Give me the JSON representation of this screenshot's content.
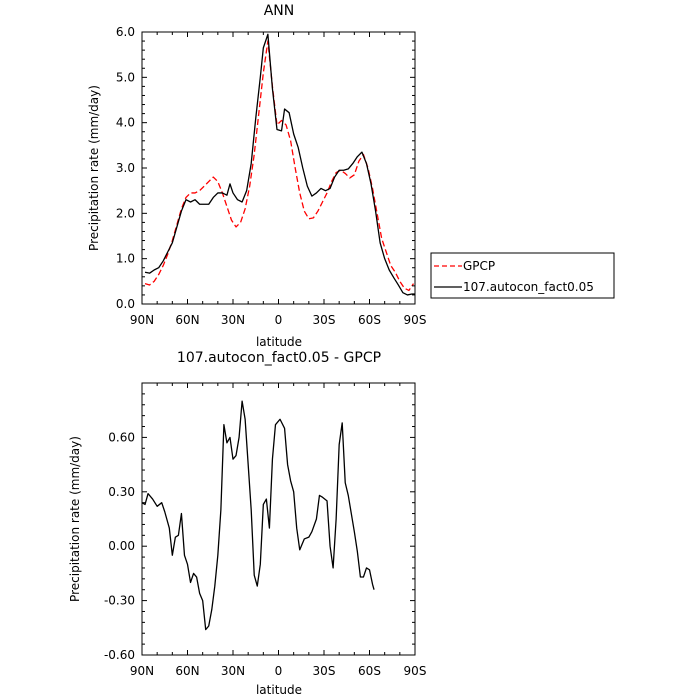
{
  "chart_data": [
    {
      "type": "line",
      "title": "ANN",
      "xlabel": "latitude",
      "ylabel": "Precipitation rate (mm/day)",
      "xlim": [
        90,
        -90
      ],
      "ylim": [
        0,
        6
      ],
      "xticks": [
        90,
        60,
        30,
        0,
        -30,
        -60,
        -90
      ],
      "xtick_labels": [
        "90N",
        "60N",
        "30N",
        "0",
        "30S",
        "60S",
        "90S"
      ],
      "yticks": [
        0,
        1,
        2,
        3,
        4,
        5,
        6
      ],
      "ytick_labels": [
        "0.0",
        "1.0",
        "2.0",
        "3.0",
        "4.0",
        "5.0",
        "6.0"
      ],
      "legend_position": "right",
      "series": [
        {
          "name": "GPCP",
          "color": "#ff0000",
          "dash": "dashed",
          "points": [
            [
              88,
              0.45
            ],
            [
              85,
              0.42
            ],
            [
              82,
              0.5
            ],
            [
              79,
              0.65
            ],
            [
              76,
              0.85
            ],
            [
              73,
              1.1
            ],
            [
              70,
              1.4
            ],
            [
              67,
              1.75
            ],
            [
              64,
              2.1
            ],
            [
              61,
              2.35
            ],
            [
              58,
              2.45
            ],
            [
              55,
              2.45
            ],
            [
              52,
              2.5
            ],
            [
              49,
              2.6
            ],
            [
              46,
              2.7
            ],
            [
              43,
              2.8
            ],
            [
              40,
              2.7
            ],
            [
              37,
              2.45
            ],
            [
              34,
              2.15
            ],
            [
              31,
              1.85
            ],
            [
              28,
              1.7
            ],
            [
              25,
              1.8
            ],
            [
              22,
              2.1
            ],
            [
              19,
              2.6
            ],
            [
              16,
              3.3
            ],
            [
              13,
              4.2
            ],
            [
              10,
              5.1
            ],
            [
              7,
              5.8
            ],
            [
              4,
              4.8
            ],
            [
              1,
              3.95
            ],
            [
              -2,
              4.05
            ],
            [
              -5,
              3.95
            ],
            [
              -8,
              3.6
            ],
            [
              -11,
              3.0
            ],
            [
              -14,
              2.45
            ],
            [
              -17,
              2.05
            ],
            [
              -20,
              1.88
            ],
            [
              -23,
              1.9
            ],
            [
              -26,
              2.05
            ],
            [
              -29,
              2.25
            ],
            [
              -32,
              2.45
            ],
            [
              -35,
              2.7
            ],
            [
              -38,
              2.9
            ],
            [
              -41,
              2.95
            ],
            [
              -44,
              2.88
            ],
            [
              -47,
              2.78
            ],
            [
              -50,
              2.85
            ],
            [
              -53,
              3.15
            ],
            [
              -56,
              3.3
            ],
            [
              -59,
              3.0
            ],
            [
              -62,
              2.55
            ],
            [
              -65,
              2.0
            ],
            [
              -68,
              1.45
            ],
            [
              -71,
              1.15
            ],
            [
              -74,
              0.85
            ],
            [
              -77,
              0.7
            ],
            [
              -80,
              0.5
            ],
            [
              -83,
              0.35
            ],
            [
              -86,
              0.3
            ],
            [
              -89,
              0.45
            ]
          ]
        },
        {
          "name": "107.autocon_fact0.05",
          "color": "#000000",
          "dash": "solid",
          "points": [
            [
              88,
              0.7
            ],
            [
              85,
              0.68
            ],
            [
              82,
              0.75
            ],
            [
              79,
              0.8
            ],
            [
              76,
              0.95
            ],
            [
              73,
              1.15
            ],
            [
              70,
              1.35
            ],
            [
              67,
              1.7
            ],
            [
              64,
              2.05
            ],
            [
              61,
              2.3
            ],
            [
              58,
              2.25
            ],
            [
              55,
              2.3
            ],
            [
              52,
              2.2
            ],
            [
              49,
              2.2
            ],
            [
              46,
              2.2
            ],
            [
              43,
              2.35
            ],
            [
              40,
              2.45
            ],
            [
              37,
              2.45
            ],
            [
              34,
              2.4
            ],
            [
              32,
              2.65
            ],
            [
              30,
              2.45
            ],
            [
              27,
              2.3
            ],
            [
              24,
              2.25
            ],
            [
              21,
              2.5
            ],
            [
              18,
              3.1
            ],
            [
              15,
              4.1
            ],
            [
              12,
              5.0
            ],
            [
              10,
              5.65
            ],
            [
              7,
              5.95
            ],
            [
              4,
              4.75
            ],
            [
              1,
              3.85
            ],
            [
              -2,
              3.82
            ],
            [
              -4,
              4.3
            ],
            [
              -7,
              4.22
            ],
            [
              -10,
              3.75
            ],
            [
              -13,
              3.45
            ],
            [
              -16,
              3.0
            ],
            [
              -19,
              2.6
            ],
            [
              -22,
              2.38
            ],
            [
              -25,
              2.45
            ],
            [
              -28,
              2.55
            ],
            [
              -31,
              2.5
            ],
            [
              -34,
              2.55
            ],
            [
              -37,
              2.8
            ],
            [
              -40,
              2.95
            ],
            [
              -43,
              2.95
            ],
            [
              -46,
              2.98
            ],
            [
              -49,
              3.1
            ],
            [
              -52,
              3.25
            ],
            [
              -55,
              3.35
            ],
            [
              -58,
              3.1
            ],
            [
              -61,
              2.65
            ],
            [
              -64,
              2.05
            ],
            [
              -67,
              1.35
            ],
            [
              -70,
              1.0
            ],
            [
              -73,
              0.75
            ],
            [
              -76,
              0.58
            ],
            [
              -79,
              0.42
            ],
            [
              -82,
              0.25
            ],
            [
              -85,
              0.2
            ],
            [
              -88,
              0.22
            ],
            [
              -90,
              0.22
            ]
          ]
        }
      ]
    },
    {
      "type": "line",
      "title": "107.autocon_fact0.05 - GPCP",
      "xlabel": "latitude",
      "ylabel": "Precipitation rate (mm/day)",
      "xlim": [
        90,
        -90
      ],
      "ylim": [
        -0.6,
        0.9
      ],
      "xticks": [
        90,
        60,
        30,
        0,
        -30,
        -60,
        -90
      ],
      "xtick_labels": [
        "90N",
        "60N",
        "30N",
        "0",
        "30S",
        "60S",
        "90S"
      ],
      "yticks": [
        -0.6,
        -0.3,
        0.0,
        0.3,
        0.6
      ],
      "ytick_labels": [
        "-0.60",
        "-0.30",
        "0.00",
        "0.30",
        "0.60"
      ],
      "series": [
        {
          "color": "#000000",
          "dash": "solid",
          "points": [
            [
              90,
              0.24
            ],
            [
              88,
              0.23
            ],
            [
              86,
              0.29
            ],
            [
              83,
              0.26
            ],
            [
              80,
              0.22
            ],
            [
              77,
              0.24
            ],
            [
              75,
              0.19
            ],
            [
              72,
              0.1
            ],
            [
              70,
              -0.05
            ],
            [
              68,
              0.05
            ],
            [
              66,
              0.06
            ],
            [
              64,
              0.18
            ],
            [
              62,
              -0.05
            ],
            [
              60,
              -0.1
            ],
            [
              58,
              -0.2
            ],
            [
              56,
              -0.15
            ],
            [
              54,
              -0.17
            ],
            [
              52,
              -0.26
            ],
            [
              50,
              -0.3
            ],
            [
              48,
              -0.46
            ],
            [
              46,
              -0.44
            ],
            [
              44,
              -0.35
            ],
            [
              42,
              -0.22
            ],
            [
              40,
              -0.05
            ],
            [
              38,
              0.2
            ],
            [
              36,
              0.67
            ],
            [
              34,
              0.57
            ],
            [
              32,
              0.6
            ],
            [
              30,
              0.48
            ],
            [
              28,
              0.5
            ],
            [
              26,
              0.6
            ],
            [
              24,
              0.8
            ],
            [
              22,
              0.7
            ],
            [
              20,
              0.45
            ],
            [
              18,
              0.2
            ],
            [
              16,
              -0.16
            ],
            [
              14,
              -0.22
            ],
            [
              12,
              -0.1
            ],
            [
              10,
              0.23
            ],
            [
              8,
              0.26
            ],
            [
              6,
              0.1
            ],
            [
              4,
              0.48
            ],
            [
              2,
              0.67
            ],
            [
              -1,
              0.7
            ],
            [
              -4,
              0.65
            ],
            [
              -6,
              0.45
            ],
            [
              -8,
              0.36
            ],
            [
              -10,
              0.3
            ],
            [
              -12,
              0.1
            ],
            [
              -14,
              -0.02
            ],
            [
              -17,
              0.04
            ],
            [
              -20,
              0.05
            ],
            [
              -22,
              0.08
            ],
            [
              -25,
              0.15
            ],
            [
              -27,
              0.28
            ],
            [
              -29,
              0.27
            ],
            [
              -32,
              0.25
            ],
            [
              -34,
              0.0
            ],
            [
              -36,
              -0.12
            ],
            [
              -38,
              0.15
            ],
            [
              -40,
              0.56
            ],
            [
              -42,
              0.68
            ],
            [
              -44,
              0.35
            ],
            [
              -46,
              0.28
            ],
            [
              -48,
              0.18
            ],
            [
              -50,
              0.08
            ],
            [
              -52,
              -0.03
            ],
            [
              -54,
              -0.17
            ],
            [
              -56,
              -0.17
            ],
            [
              -58,
              -0.12
            ],
            [
              -60,
              -0.13
            ],
            [
              -62,
              -0.21
            ],
            [
              -63,
              -0.24
            ]
          ]
        }
      ]
    }
  ]
}
